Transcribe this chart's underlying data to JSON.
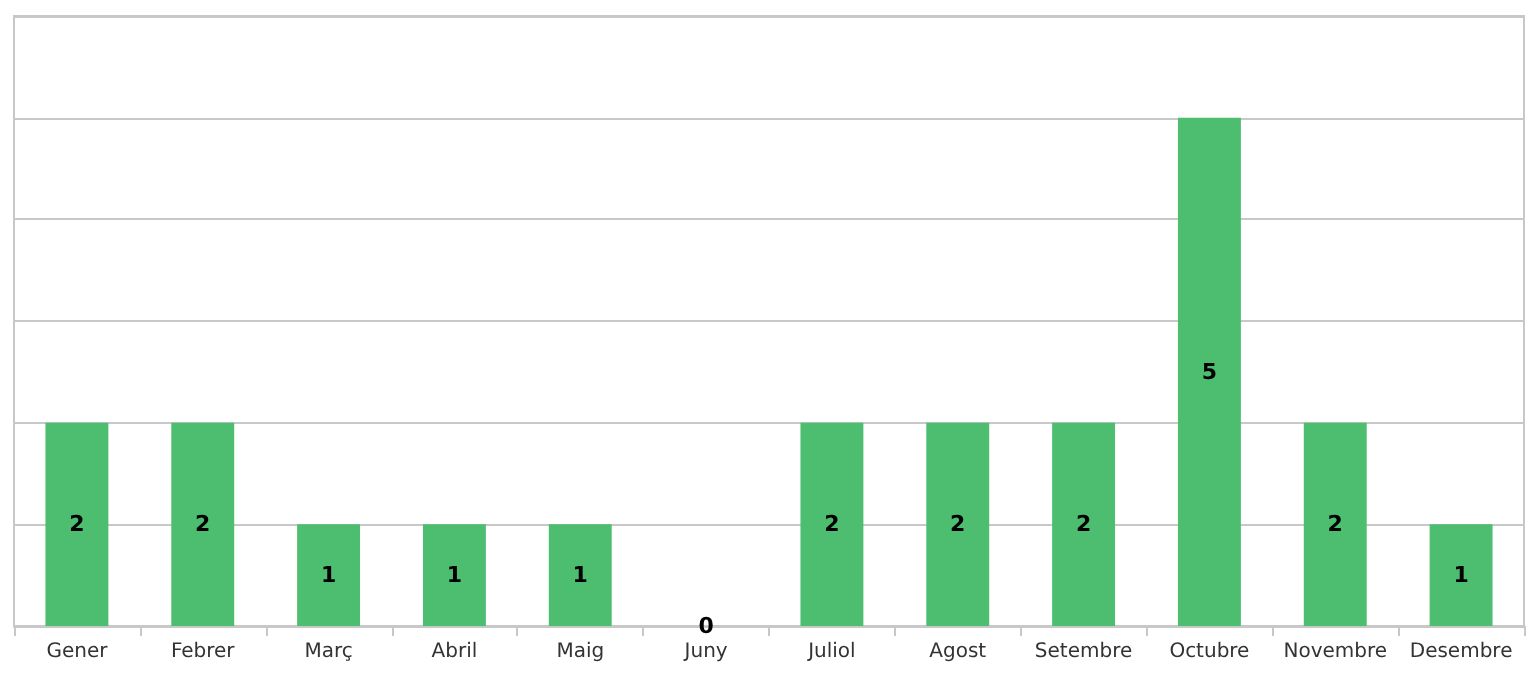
{
  "chart_data": {
    "type": "bar",
    "categories": [
      "Gener",
      "Febrer",
      "Març",
      "Abril",
      "Maig",
      "Juny",
      "Juliol",
      "Agost",
      "Setembre",
      "Octubre",
      "Novembre",
      "Desembre"
    ],
    "values": [
      2,
      2,
      1,
      1,
      1,
      0,
      2,
      2,
      2,
      5,
      2,
      1
    ],
    "color": "#4dbd70",
    "ylim": [
      0,
      6
    ],
    "yticks": [
      {
        "value": 0,
        "label": null
      },
      {
        "value": 1,
        "label": null
      },
      {
        "value": 2,
        "label": null
      },
      {
        "value": 3,
        "label": null
      },
      {
        "value": 4,
        "label": null
      },
      {
        "value": 5,
        "label": null
      },
      {
        "value": 6,
        "label": null
      }
    ],
    "tick_labels": "x",
    "grid": "y",
    "data_labels": true
  }
}
